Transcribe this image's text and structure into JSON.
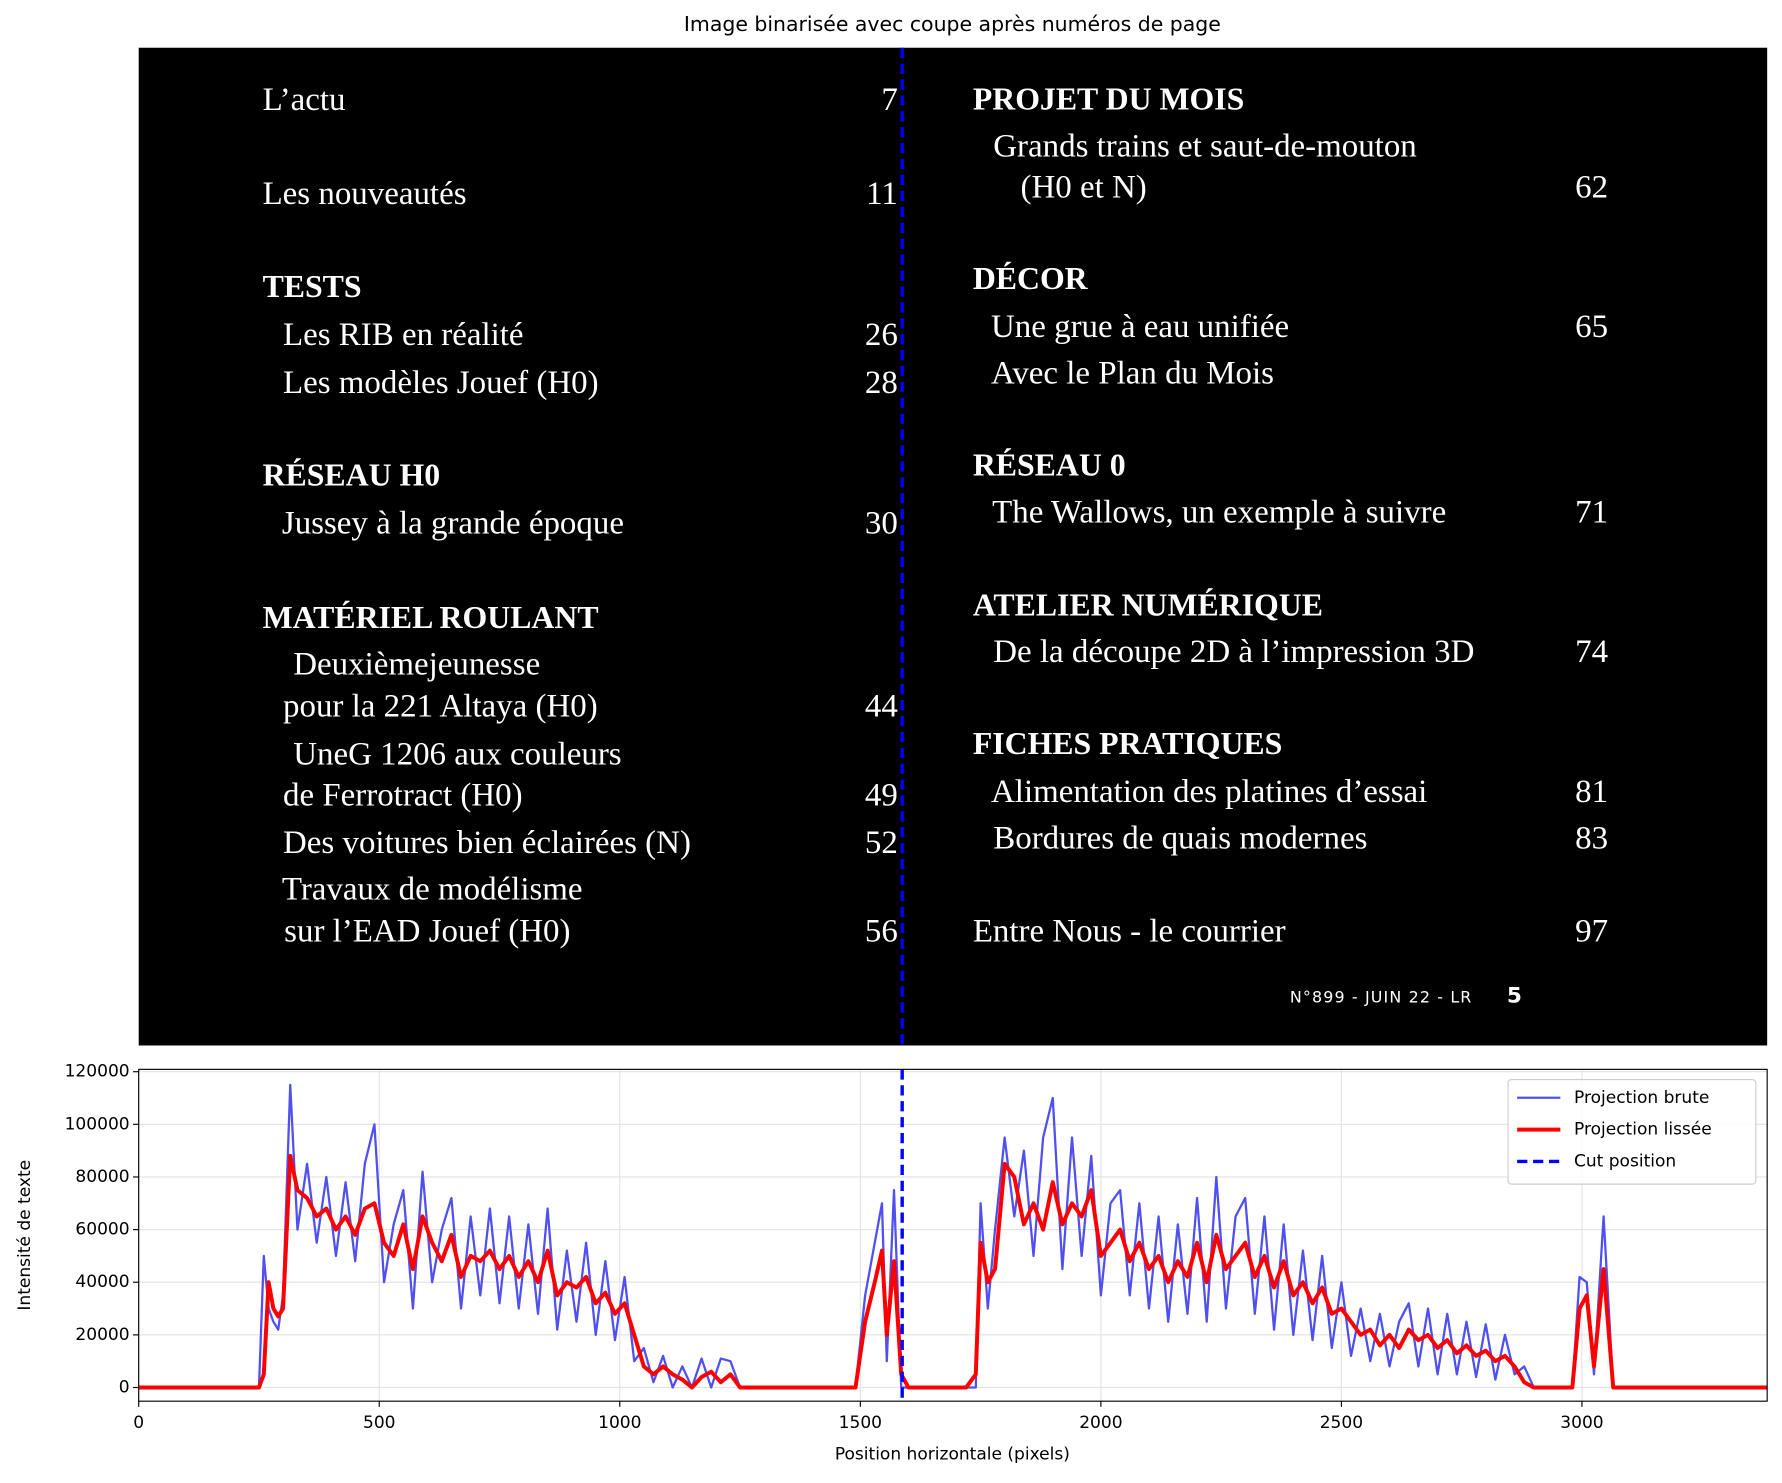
{
  "chart_data": [
    {
      "type": "image",
      "title": "Image binarisée avec coupe après numéros de page",
      "left": [
        {
          "text": "L’actu",
          "page": 7
        },
        {
          "text": "Les nouveautés",
          "page": 11
        },
        {
          "text": "TESTS"
        },
        {
          "text": "Les RIB en réalité",
          "page": 26
        },
        {
          "text": "Les modèles Jouef (H0)",
          "page": 28
        },
        {
          "text": "RÉSEAU H0"
        },
        {
          "text": "Jussey à la grande époque",
          "page": 30
        },
        {
          "text": "MATÉRIEL ROULANT"
        },
        {
          "text": "Deuxièmejeunesse"
        },
        {
          "text": "pour la 221 Altaya (H0)",
          "page": 44
        },
        {
          "text": "UneG 1206 aux couleurs"
        },
        {
          "text": "de Ferrotract (H0)",
          "page": 49
        },
        {
          "text": "Des voitures bien éclairées (N)",
          "page": 52
        },
        {
          "text": "Travaux de modélisme"
        },
        {
          "text": "sur l’EAD Jouef (H0)",
          "page": 56
        }
      ],
      "right": [
        {
          "text": "PROJET DU MOIS"
        },
        {
          "text": "Grands trains et saut-de-mouton"
        },
        {
          "text": "(H0 et N)",
          "page": 62
        },
        {
          "text": "DÉCOR"
        },
        {
          "text": "Une grue à eau unifiée",
          "page": 65
        },
        {
          "text": "Avec le Plan du Mois"
        },
        {
          "text": "RÉSEAU 0"
        },
        {
          "text": "The Wallows, un exemple à suivre",
          "page": 71
        },
        {
          "text": "ATELIER NUMÉRIQUE"
        },
        {
          "text": "De la découpe 2D à l’impression 3D",
          "page": 74
        },
        {
          "text": "FICHES PRATIQUES"
        },
        {
          "text": "Alimentation des platines d’essai",
          "page": 81
        },
        {
          "text": "Bordures de quais modernes",
          "page": 83
        },
        {
          "text": "Entre Nous - le courrier",
          "page": 97
        }
      ],
      "footer": "N°899 - JUIN 22 - LR",
      "folio": 5
    },
    {
      "type": "line",
      "x_label": "Position horizontale (pixels)",
      "y_label": "Intensité de texte",
      "xlim": [
        0,
        3385
      ],
      "ylim": [
        -5200,
        120900
      ],
      "xticks": [
        0,
        500,
        1000,
        1500,
        2000,
        2500,
        3000
      ],
      "yticks": [
        0,
        20000,
        40000,
        60000,
        80000,
        100000,
        120000
      ],
      "grid": true,
      "legend": "upper right",
      "x": [
        0,
        250,
        260,
        270,
        280,
        290,
        300,
        315,
        330,
        350,
        370,
        390,
        410,
        430,
        450,
        470,
        490,
        510,
        530,
        550,
        570,
        590,
        610,
        630,
        650,
        670,
        690,
        710,
        730,
        750,
        770,
        790,
        810,
        830,
        850,
        870,
        890,
        910,
        930,
        950,
        970,
        990,
        1010,
        1030,
        1050,
        1070,
        1090,
        1110,
        1130,
        1150,
        1170,
        1190,
        1210,
        1230,
        1250,
        1270,
        1490,
        1510,
        1530,
        1545,
        1555,
        1570,
        1585,
        1600,
        1720,
        1740,
        1750,
        1765,
        1780,
        1800,
        1820,
        1840,
        1860,
        1880,
        1900,
        1920,
        1940,
        1960,
        1980,
        2000,
        2020,
        2040,
        2060,
        2080,
        2100,
        2120,
        2140,
        2160,
        2180,
        2200,
        2220,
        2240,
        2260,
        2280,
        2300,
        2320,
        2340,
        2360,
        2380,
        2400,
        2420,
        2440,
        2460,
        2480,
        2500,
        2520,
        2540,
        2560,
        2580,
        2600,
        2620,
        2640,
        2660,
        2680,
        2700,
        2720,
        2740,
        2760,
        2780,
        2800,
        2820,
        2840,
        2860,
        2880,
        2900,
        2980,
        2995,
        3010,
        3025,
        3045,
        3065,
        3385
      ],
      "series": [
        {
          "name": "Projection brute",
          "color": "#5050f0",
          "values": [
            0,
            0,
            50000,
            30000,
            25000,
            22000,
            35000,
            115000,
            60000,
            85000,
            55000,
            80000,
            50000,
            78000,
            48000,
            85000,
            100000,
            40000,
            62000,
            75000,
            30000,
            82000,
            40000,
            60000,
            72000,
            30000,
            65000,
            35000,
            68000,
            32000,
            65000,
            30000,
            62000,
            28000,
            68000,
            22000,
            52000,
            25000,
            55000,
            20000,
            48000,
            18000,
            42000,
            10000,
            15000,
            2000,
            12000,
            0,
            8000,
            0,
            11000,
            0,
            11000,
            10000,
            0,
            0,
            0,
            35000,
            55000,
            70000,
            10000,
            75000,
            0,
            0,
            0,
            0,
            70000,
            30000,
            60000,
            95000,
            65000,
            90000,
            50000,
            95000,
            110000,
            45000,
            95000,
            50000,
            88000,
            35000,
            70000,
            75000,
            35000,
            70000,
            30000,
            65000,
            25000,
            62000,
            28000,
            72000,
            25000,
            80000,
            30000,
            65000,
            72000,
            28000,
            65000,
            22000,
            62000,
            20000,
            52000,
            18000,
            50000,
            15000,
            40000,
            12000,
            30000,
            10000,
            28000,
            8000,
            25000,
            32000,
            8000,
            30000,
            5000,
            28000,
            5000,
            25000,
            4000,
            24000,
            3000,
            20000,
            5000,
            8000,
            0,
            0,
            42000,
            40000,
            5000,
            65000,
            0,
            0
          ]
        },
        {
          "name": "Projection lissée",
          "color": "#ff0000",
          "values": [
            0,
            0,
            5000,
            40000,
            30000,
            27000,
            30000,
            88000,
            75000,
            72000,
            65000,
            68000,
            60000,
            65000,
            58000,
            68000,
            70000,
            55000,
            50000,
            62000,
            45000,
            65000,
            55000,
            48000,
            58000,
            42000,
            50000,
            48000,
            52000,
            45000,
            50000,
            42000,
            48000,
            40000,
            52000,
            35000,
            40000,
            38000,
            42000,
            32000,
            36000,
            28000,
            32000,
            20000,
            8000,
            5000,
            8000,
            5000,
            3000,
            0,
            4000,
            6000,
            2000,
            5000,
            0,
            0,
            0,
            25000,
            40000,
            52000,
            20000,
            48000,
            5000,
            0,
            0,
            5000,
            55000,
            40000,
            45000,
            85000,
            80000,
            62000,
            70000,
            60000,
            78000,
            62000,
            70000,
            65000,
            75000,
            50000,
            55000,
            60000,
            48000,
            55000,
            45000,
            50000,
            40000,
            48000,
            42000,
            55000,
            40000,
            58000,
            45000,
            50000,
            55000,
            42000,
            50000,
            38000,
            48000,
            35000,
            40000,
            32000,
            38000,
            28000,
            30000,
            25000,
            20000,
            22000,
            16000,
            20000,
            15000,
            22000,
            18000,
            20000,
            15000,
            18000,
            13000,
            16000,
            12000,
            14000,
            10000,
            12000,
            8000,
            2000,
            0,
            0,
            30000,
            35000,
            8000,
            45000,
            0,
            0
          ]
        }
      ],
      "cut": {
        "name": "Cut position",
        "value": 1587,
        "color": "#0000ff"
      }
    }
  ]
}
